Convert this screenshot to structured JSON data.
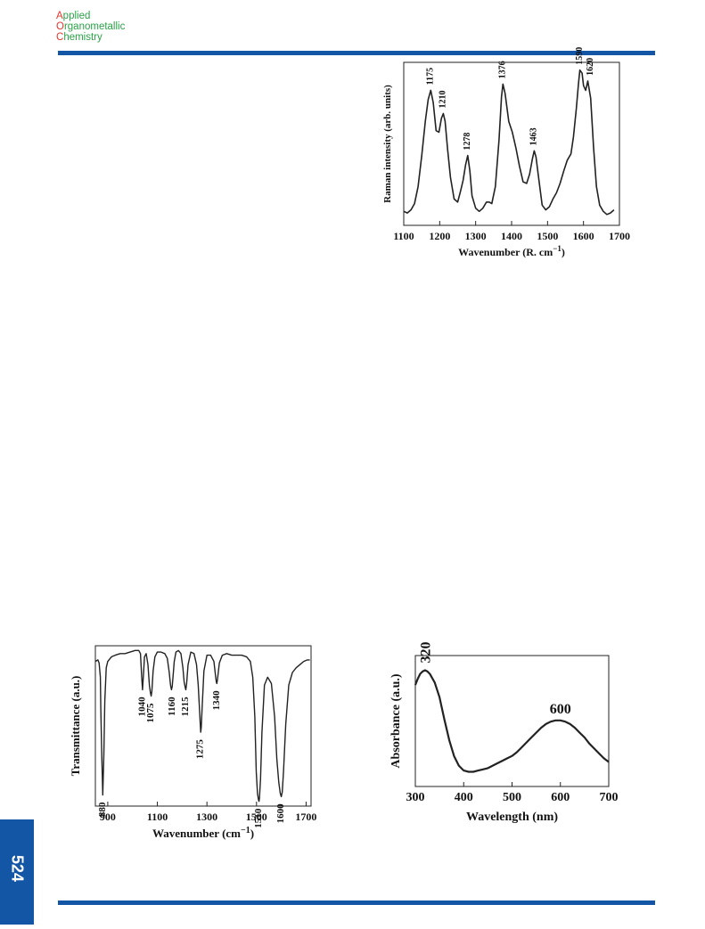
{
  "header": {
    "journal_line1_initial": "A",
    "journal_line1_rest": "pplied",
    "journal_line2_initial": "O",
    "journal_line2_rest": "rganometallic",
    "journal_line3_initial": "C",
    "journal_line3_rest": "hemistry"
  },
  "footer": {
    "page_number": "524"
  },
  "colors": {
    "brand_blue": "#1456a6",
    "logo_green": "#2aa247",
    "logo_red": "#e0362c"
  },
  "chart_data": [
    {
      "id": "raman",
      "type": "line",
      "title": "",
      "xlabel": "Wavenumber (R. cm",
      "xlabel_sup": "−1",
      "xlabel_end": ")",
      "ylabel": "Raman intensity (arb. units)",
      "xlim": [
        1100,
        1700
      ],
      "xticks": [
        "1100",
        "1200",
        "1300",
        "1400",
        "1500",
        "1600",
        "1700"
      ],
      "grid": false,
      "x": [
        1100,
        1110,
        1120,
        1130,
        1140,
        1150,
        1160,
        1168,
        1175,
        1182,
        1190,
        1198,
        1205,
        1210,
        1215,
        1222,
        1230,
        1240,
        1250,
        1258,
        1265,
        1272,
        1278,
        1284,
        1290,
        1300,
        1310,
        1320,
        1330,
        1338,
        1345,
        1355,
        1365,
        1372,
        1376,
        1382,
        1392,
        1402,
        1412,
        1422,
        1432,
        1442,
        1450,
        1458,
        1463,
        1468,
        1476,
        1485,
        1495,
        1505,
        1515,
        1525,
        1535,
        1545,
        1555,
        1565,
        1572,
        1580,
        1586,
        1590,
        1596,
        1600,
        1606,
        1612,
        1620,
        1628,
        1636,
        1645,
        1655,
        1665,
        1675,
        1685
      ],
      "y": [
        0.04,
        0.03,
        0.05,
        0.09,
        0.2,
        0.4,
        0.62,
        0.76,
        0.82,
        0.74,
        0.56,
        0.55,
        0.64,
        0.67,
        0.62,
        0.44,
        0.26,
        0.12,
        0.1,
        0.17,
        0.24,
        0.34,
        0.4,
        0.3,
        0.14,
        0.06,
        0.04,
        0.06,
        0.1,
        0.1,
        0.09,
        0.2,
        0.5,
        0.78,
        0.86,
        0.8,
        0.62,
        0.55,
        0.45,
        0.33,
        0.23,
        0.22,
        0.28,
        0.38,
        0.43,
        0.39,
        0.24,
        0.08,
        0.05,
        0.07,
        0.12,
        0.16,
        0.22,
        0.3,
        0.37,
        0.41,
        0.52,
        0.7,
        0.86,
        0.95,
        0.93,
        0.85,
        0.82,
        0.88,
        0.77,
        0.45,
        0.2,
        0.08,
        0.04,
        0.02,
        0.03,
        0.05
      ],
      "peak_labels": [
        {
          "label": "1175",
          "x": 1175,
          "y": 0.82
        },
        {
          "label": "1210",
          "x": 1210,
          "y": 0.67
        },
        {
          "label": "1278",
          "x": 1278,
          "y": 0.4
        },
        {
          "label": "1376",
          "x": 1376,
          "y": 0.86
        },
        {
          "label": "1463",
          "x": 1463,
          "y": 0.43
        },
        {
          "label": "1590",
          "x": 1590,
          "y": 0.95
        },
        {
          "label": "1620",
          "x": 1620,
          "y": 0.88
        }
      ]
    },
    {
      "id": "ftir",
      "type": "line",
      "title": "",
      "xlabel": "Wavenumber (cm",
      "xlabel_sup": "−1",
      "xlabel_end": ")",
      "ylabel": "Transmittance (a.u.)",
      "xlim": [
        850,
        1720
      ],
      "xticks": [
        "900",
        "1100",
        "1300",
        "1500",
        "1700"
      ],
      "grid": false,
      "x": [
        850,
        860,
        865,
        870,
        872,
        876,
        880,
        884,
        888,
        894,
        900,
        915,
        930,
        950,
        970,
        990,
        1010,
        1025,
        1032,
        1037,
        1040,
        1044,
        1048,
        1055,
        1062,
        1068,
        1072,
        1075,
        1078,
        1083,
        1090,
        1100,
        1115,
        1130,
        1140,
        1148,
        1153,
        1157,
        1160,
        1163,
        1168,
        1175,
        1185,
        1195,
        1203,
        1208,
        1213,
        1215,
        1218,
        1224,
        1235,
        1248,
        1258,
        1265,
        1270,
        1273,
        1275,
        1277,
        1281,
        1288,
        1300,
        1315,
        1328,
        1334,
        1338,
        1340,
        1343,
        1350,
        1362,
        1380,
        1400,
        1420,
        1440,
        1460,
        1475,
        1485,
        1493,
        1499,
        1504,
        1508,
        1510,
        1512,
        1516,
        1522,
        1532,
        1545,
        1560,
        1573,
        1582,
        1590,
        1596,
        1600,
        1604,
        1609,
        1618,
        1630,
        1645,
        1660,
        1675,
        1690,
        1705,
        1715
      ],
      "y": [
        0.9,
        0.91,
        0.89,
        0.8,
        0.6,
        0.3,
        0.05,
        0.3,
        0.65,
        0.86,
        0.9,
        0.93,
        0.94,
        0.95,
        0.95,
        0.96,
        0.97,
        0.97,
        0.95,
        0.8,
        0.72,
        0.82,
        0.93,
        0.95,
        0.88,
        0.75,
        0.7,
        0.68,
        0.71,
        0.84,
        0.93,
        0.96,
        0.96,
        0.95,
        0.92,
        0.83,
        0.75,
        0.72,
        0.74,
        0.8,
        0.9,
        0.96,
        0.97,
        0.95,
        0.86,
        0.77,
        0.73,
        0.72,
        0.76,
        0.88,
        0.96,
        0.95,
        0.88,
        0.75,
        0.6,
        0.5,
        0.45,
        0.48,
        0.62,
        0.84,
        0.94,
        0.94,
        0.9,
        0.82,
        0.77,
        0.76,
        0.79,
        0.89,
        0.94,
        0.95,
        0.94,
        0.94,
        0.94,
        0.93,
        0.9,
        0.8,
        0.55,
        0.2,
        0.06,
        0.02,
        0.01,
        0.03,
        0.15,
        0.45,
        0.75,
        0.8,
        0.76,
        0.55,
        0.28,
        0.13,
        0.06,
        0.04,
        0.07,
        0.2,
        0.5,
        0.75,
        0.83,
        0.86,
        0.88,
        0.9,
        0.91,
        0.91
      ],
      "peak_labels": [
        {
          "label": "880",
          "x": 880,
          "y": 0.05
        },
        {
          "label": "1040",
          "x": 1040,
          "y": 0.72
        },
        {
          "label": "1075",
          "x": 1075,
          "y": 0.68
        },
        {
          "label": "1160",
          "x": 1160,
          "y": 0.72
        },
        {
          "label": "1215",
          "x": 1215,
          "y": 0.72
        },
        {
          "label": "1275",
          "x": 1275,
          "y": 0.45
        },
        {
          "label": "1340",
          "x": 1340,
          "y": 0.76
        },
        {
          "label": "1510",
          "x": 1510,
          "y": 0.01
        },
        {
          "label": "1600",
          "x": 1600,
          "y": 0.04
        }
      ]
    },
    {
      "id": "uvvis",
      "type": "line",
      "title": "",
      "xlabel": "Wavelength (nm)",
      "ylabel": "Absorbance (a.u.)",
      "xlim": [
        300,
        700
      ],
      "xticks": [
        "300",
        "400",
        "500",
        "600",
        "700"
      ],
      "grid": false,
      "x": [
        300,
        305,
        310,
        315,
        320,
        325,
        330,
        340,
        350,
        360,
        370,
        380,
        390,
        400,
        410,
        420,
        430,
        440,
        450,
        460,
        470,
        480,
        490,
        500,
        510,
        520,
        530,
        540,
        550,
        560,
        570,
        580,
        590,
        600,
        610,
        620,
        630,
        640,
        650,
        660,
        670,
        680,
        690,
        700
      ],
      "y": [
        0.78,
        0.83,
        0.87,
        0.89,
        0.9,
        0.89,
        0.87,
        0.8,
        0.68,
        0.5,
        0.33,
        0.2,
        0.12,
        0.08,
        0.07,
        0.07,
        0.08,
        0.09,
        0.1,
        0.12,
        0.14,
        0.16,
        0.18,
        0.2,
        0.23,
        0.27,
        0.31,
        0.35,
        0.39,
        0.43,
        0.46,
        0.48,
        0.49,
        0.49,
        0.48,
        0.46,
        0.43,
        0.39,
        0.35,
        0.3,
        0.26,
        0.22,
        0.18,
        0.15
      ],
      "peak_labels": [
        {
          "label": "320",
          "x": 320,
          "y": 0.9
        },
        {
          "label": "600",
          "x": 600,
          "y": 0.49
        }
      ]
    }
  ]
}
